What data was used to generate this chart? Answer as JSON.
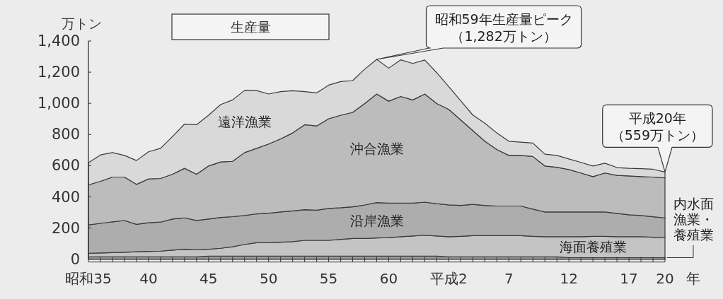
{
  "chart_data": {
    "type": "area",
    "stacked": true,
    "title": "生産量",
    "ylabel": "万トン",
    "xlabel": "年",
    "categories": [
      "昭和35",
      null,
      null,
      null,
      null,
      "40",
      null,
      null,
      null,
      null,
      "45",
      null,
      null,
      null,
      null,
      "50",
      null,
      null,
      null,
      null,
      "55",
      null,
      null,
      null,
      null,
      "60",
      null,
      null,
      null,
      null,
      "平成2",
      null,
      null,
      null,
      null,
      "7",
      null,
      null,
      null,
      null,
      "12",
      null,
      null,
      null,
      null,
      "17",
      null,
      null,
      "20"
    ],
    "ylim": [
      0,
      1400
    ],
    "yticks": [
      0,
      200,
      400,
      600,
      800,
      {
        "value": 1000,
        "label": "1,000"
      },
      {
        "value": 1200,
        "label": "1,200"
      },
      {
        "value": 1400,
        "label": "1,400"
      }
    ],
    "series": [
      {
        "name": "内水面漁業・養殖業",
        "color": "#9a9a9a",
        "values": [
          15,
          15,
          15,
          15,
          15,
          15,
          15,
          15,
          15,
          15,
          20,
          20,
          20,
          20,
          20,
          20,
          20,
          20,
          20,
          20,
          20,
          20,
          20,
          20,
          20,
          20,
          20,
          20,
          20,
          20,
          15,
          15,
          15,
          15,
          15,
          15,
          15,
          15,
          15,
          15,
          10,
          10,
          10,
          10,
          10,
          10,
          10,
          10,
          10
        ]
      },
      {
        "name": "海面養殖業",
        "color": "#c4c4c4",
        "values": [
          23,
          25,
          27,
          30,
          33,
          35,
          37,
          43,
          49,
          46,
          44,
          50,
          60,
          75,
          86,
          86,
          89,
          93,
          101,
          101,
          101,
          107,
          113,
          113,
          116,
          119,
          124,
          129,
          134,
          129,
          129,
          132,
          136,
          136,
          136,
          136,
          136,
          132,
          129,
          129,
          134,
          134,
          137,
          137,
          134,
          134,
          134,
          131,
          128
        ]
      },
      {
        "name": "沿岸漁業",
        "color": "#adadad",
        "values": [
          182,
          190,
          198,
          203,
          176,
          184,
          186,
          200,
          201,
          188,
          194,
          198,
          193,
          185,
          185,
          189,
          194,
          197,
          197,
          193,
          205,
          203,
          203,
          215,
          227,
          221,
          216,
          211,
          212,
          207,
          204,
          198,
          201,
          194,
          190,
          190,
          190,
          174,
          159,
          159,
          159,
          159,
          156,
          156,
          150,
          141,
          136,
          131,
          127
        ]
      },
      {
        "name": "沖合漁業",
        "color": "#bcbcbc",
        "values": [
          257,
          270,
          287,
          279,
          256,
          281,
          280,
          287,
          318,
          296,
          340,
          356,
          355,
          404,
          420,
          444,
          469,
          500,
          545,
          541,
          575,
          594,
          606,
          651,
          697,
          654,
          684,
          662,
          694,
          643,
          613,
          548,
          473,
          412,
          363,
          325,
          325,
          338,
          295,
          287,
          272,
          250,
          227,
          250,
          244,
          249,
          250,
          255,
          257
        ]
      },
      {
        "name": "遠洋漁業",
        "color": "#d9d9d9",
        "values": [
          142,
          169,
          157,
          139,
          153,
          174,
          193,
          242,
          284,
          318,
          326,
          368,
          394,
          399,
          371,
          321,
          303,
          271,
          212,
          212,
          216,
          216,
          204,
          220,
          222,
          212,
          235,
          234,
          218,
          197,
          146,
          123,
          100,
          116,
          106,
          91,
          85,
          86,
          76,
          76,
          68,
          68,
          68,
          63,
          50,
          49,
          51,
          50,
          37
        ]
      }
    ],
    "annotations": [
      "昭和59年生産量ピーク（1,282万トン）",
      {
        "text": "平成20年（559万トン）",
        "x": "20",
        "y": 559
      }
    ]
  }
}
